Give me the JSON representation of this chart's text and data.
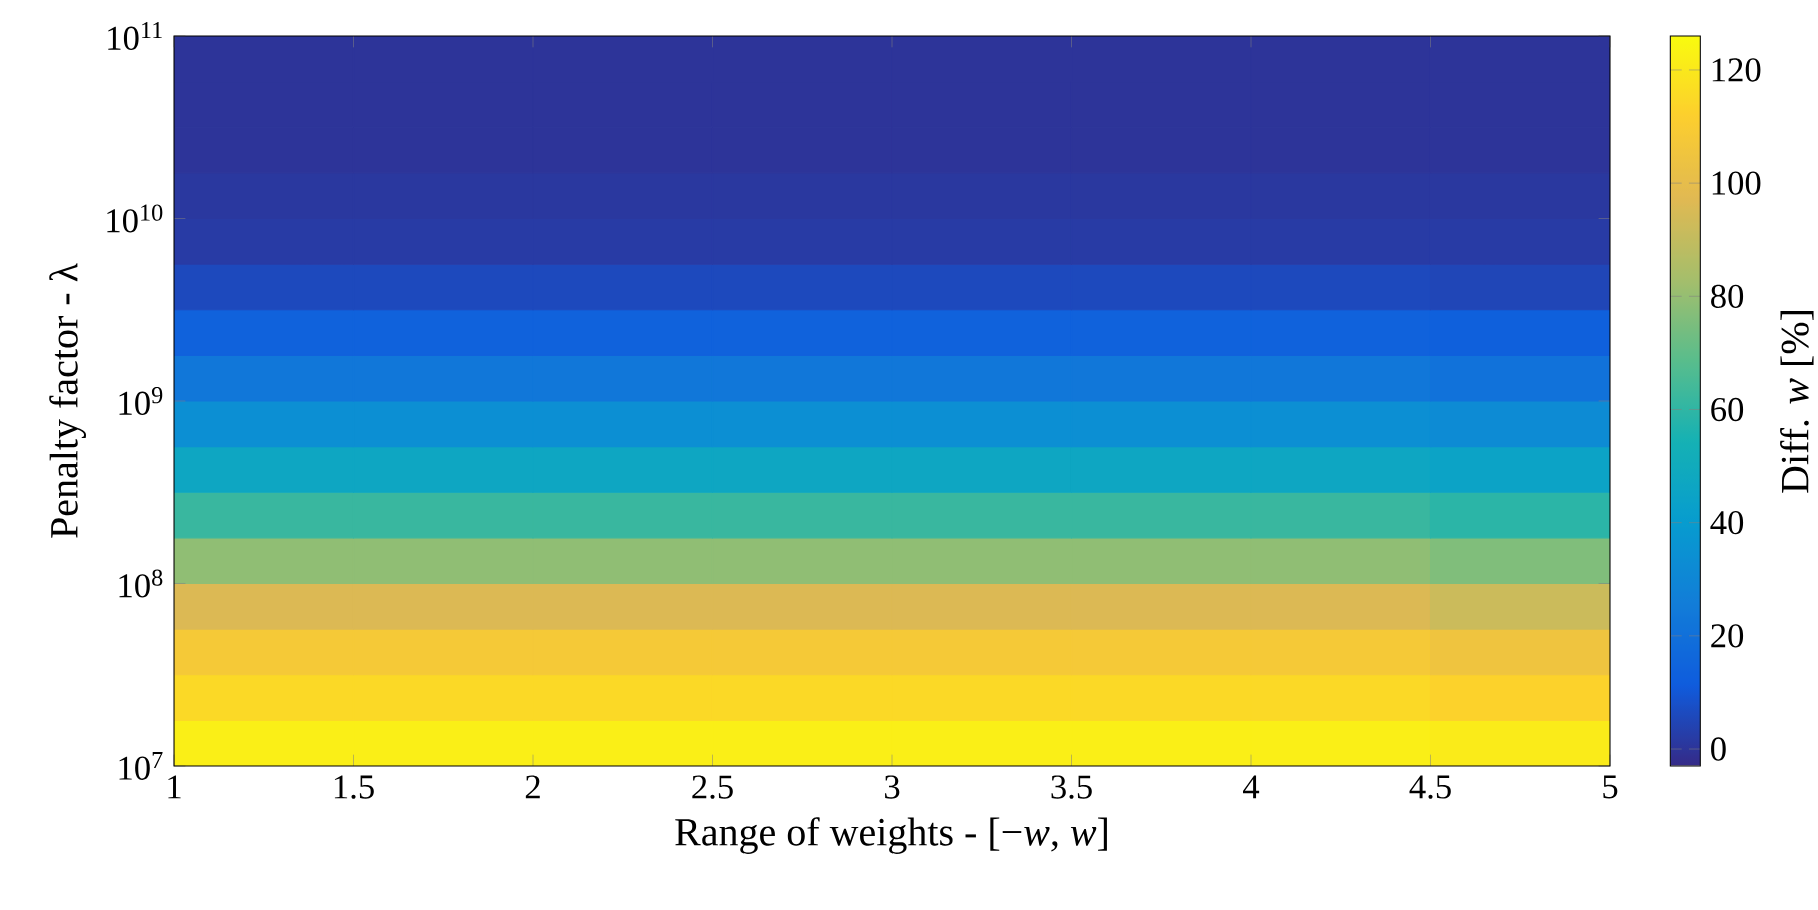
{
  "chart_data": {
    "type": "heatmap",
    "xlabel": "Range of weights - [−*w*, *w*]",
    "ylabel": "Penalty factor - λ",
    "clabel": "Diff. *w* [%]",
    "x": [
      1.25,
      1.75,
      2.25,
      2.75,
      3.25,
      3.75,
      4.25,
      4.75
    ],
    "y": [
      74989421000,
      42169650000,
      23713737000,
      13335214000,
      7498942100,
      4216965000,
      2371373700,
      1333521400,
      749894210,
      421696500,
      237137370,
      133352140,
      74989421,
      42169650,
      23713737,
      13335214
    ],
    "xlim": [
      1,
      5
    ],
    "xticks": [
      1,
      1.5,
      2,
      2.5,
      3,
      3.5,
      4,
      4.5,
      5
    ],
    "ylim": [
      10000000,
      100000000000
    ],
    "yticks": [
      {
        "value": 10000000,
        "label": "10$^{7}$"
      },
      {
        "value": 100000000,
        "label": "10$^{8}$"
      },
      {
        "value": 1000000000,
        "label": "10$^{9}$"
      },
      {
        "value": 10000000000,
        "label": "10$^{10}$"
      },
      {
        "value": 100000000000,
        "label": "10$^{11}$"
      }
    ],
    "log": "y",
    "clim": [
      -3,
      126
    ],
    "cticks": [
      0,
      20,
      40,
      60,
      80,
      100,
      120
    ],
    "cells": [
      [
        0,
        0,
        0,
        0,
        0,
        0,
        0,
        0
      ],
      [
        0,
        0,
        0,
        0,
        0,
        0,
        0,
        0
      ],
      [
        0,
        0,
        0,
        0,
        0,
        0,
        0,
        0
      ],
      [
        1,
        1,
        1,
        1,
        1,
        1,
        1,
        1
      ],
      [
        2,
        2,
        2,
        2,
        2,
        2,
        2,
        2
      ],
      [
        6,
        6,
        6,
        6,
        6,
        6,
        6,
        5
      ],
      [
        14,
        14,
        14,
        14,
        14,
        14,
        14,
        13
      ],
      [
        23,
        23,
        23,
        23,
        23,
        23,
        23,
        21
      ],
      [
        34,
        34,
        34,
        34,
        34,
        34,
        34,
        32
      ],
      [
        47,
        47,
        47,
        47,
        47,
        47,
        47,
        45
      ],
      [
        62,
        62,
        62,
        62,
        62,
        62,
        62,
        59
      ],
      [
        79,
        79,
        79,
        79,
        79,
        79,
        79,
        76
      ],
      [
        96,
        96,
        96,
        96,
        96,
        96,
        96,
        92
      ],
      [
        108,
        108,
        108,
        108,
        108,
        108,
        108,
        105
      ],
      [
        115,
        115,
        115,
        115,
        115,
        115,
        115,
        113
      ],
      [
        122,
        122,
        122,
        122,
        122,
        122,
        122,
        121
      ]
    ]
  }
}
